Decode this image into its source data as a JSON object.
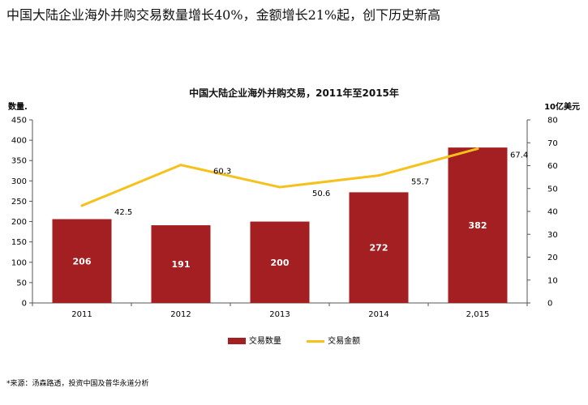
{
  "headline": "中国大陆企业海外并购交易数量增长40%，金额增长21%起，创下历史新高",
  "source": "*来源：汤森路透，投资中国及普华永道分析",
  "chart_data": {
    "type": "bar",
    "title": "中国大陆企业海外并购交易，2011年至2015年",
    "categories": [
      "2011",
      "2012",
      "2013",
      "2014",
      "2,015"
    ],
    "ylabel_left": "数量.",
    "ylabel_right": "10亿美元",
    "ylim_left": [
      0,
      450
    ],
    "yticks_left": [
      0,
      50,
      100,
      150,
      200,
      250,
      300,
      350,
      400,
      450
    ],
    "ylim_right": [
      0,
      80
    ],
    "yticks_right": [
      0,
      10,
      20,
      30,
      40,
      50,
      60,
      70,
      80
    ],
    "series": [
      {
        "name": "交易数量",
        "type": "bar",
        "axis": "left",
        "color": "#a31f22",
        "values": [
          206,
          191,
          200,
          272,
          382
        ],
        "labels": [
          "206",
          "191",
          "200",
          "272",
          "382"
        ]
      },
      {
        "name": "交易金额",
        "type": "line",
        "axis": "right",
        "color": "#f5c11a",
        "values": [
          42.5,
          60.3,
          50.6,
          55.7,
          67.4
        ],
        "labels": [
          "42.5",
          "60.3",
          "50.6",
          "55.7",
          "67.4"
        ]
      }
    ],
    "grid": false,
    "legend_position": "bottom-center"
  }
}
